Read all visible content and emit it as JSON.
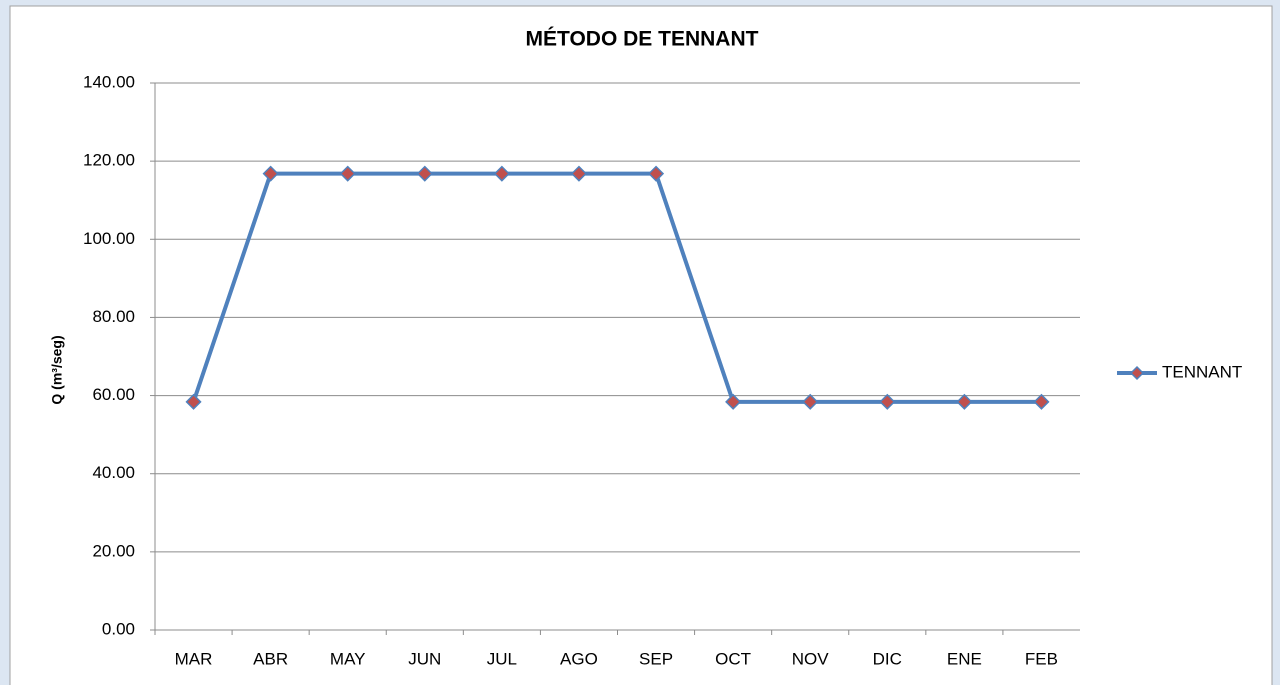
{
  "chart_data": {
    "type": "line",
    "title": "MÉTODO DE TENNANT",
    "y_label": "Q (m³/seg)",
    "categories": [
      "MAR",
      "ABR",
      "MAY",
      "JUN",
      "JUL",
      "AGO",
      "SEP",
      "OCT",
      "NOV",
      "DIC",
      "ENE",
      "FEB"
    ],
    "series": [
      {
        "name": "TENNANT",
        "color": "#4f81bd",
        "marker_color": "#c0504d",
        "values": [
          58.4,
          116.8,
          116.8,
          116.8,
          116.8,
          116.8,
          116.8,
          58.4,
          58.4,
          58.4,
          58.4,
          58.4
        ]
      }
    ],
    "ylim": [
      0,
      140
    ],
    "yticks": [
      {
        "value": 0,
        "label": "0.00"
      },
      {
        "value": 20,
        "label": "20.00"
      },
      {
        "value": 40,
        "label": "40.00"
      },
      {
        "value": 60,
        "label": "60.00"
      },
      {
        "value": 80,
        "label": "80.00"
      },
      {
        "value": 100,
        "label": "100.00"
      },
      {
        "value": 120,
        "label": "120.00"
      },
      {
        "value": 140,
        "label": "140.00"
      }
    ],
    "grid": true,
    "legend": "right"
  }
}
